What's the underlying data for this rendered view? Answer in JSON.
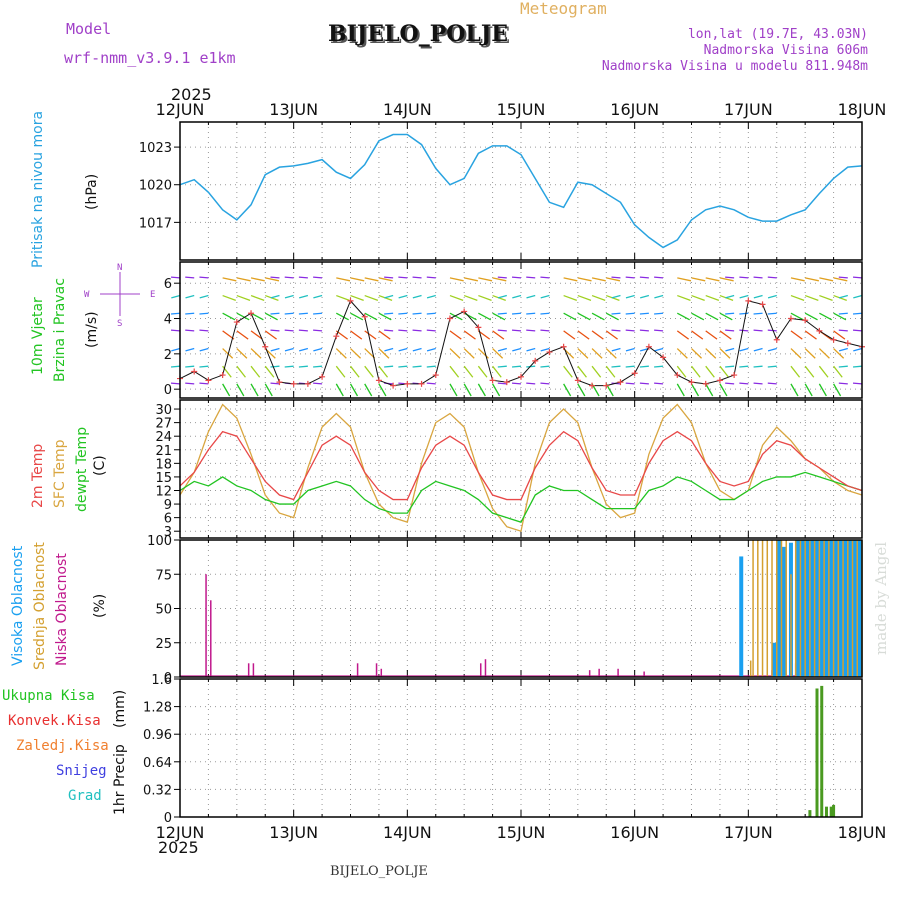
{
  "header": {
    "model_label": "Model",
    "model_name": "wrf-nmm_v3.9.1  e1km",
    "station": "BIJELO_POLJE",
    "product": "Meteogram",
    "lonlat": "lon,lat (19.7E, 43.03N)",
    "elevation": "Nadmorska Visina 606m",
    "model_elevation": "Nadmorska Visina u modelu 811.948m",
    "year": "2025",
    "footer_station": "BIJELO_POLJE",
    "credit": "made by Angel"
  },
  "colors": {
    "pressure": "#29a3e0",
    "temp2m": "#e84848",
    "sfc_temp": "#d9a640",
    "dewpt": "#22c422",
    "high_cloud": "#1aa0f0",
    "mid_cloud": "#d4a030",
    "low_cloud": "#c0188c",
    "total_precip": "#4a9a20",
    "conv_precip": "#e83030",
    "frozen_precip": "#f08030",
    "snow": "#4040e0",
    "hail": "#20c0c0",
    "header_purple": "#a040c8",
    "title_orange": "#e0b060"
  },
  "chart_data": [
    {
      "type": "line",
      "panel": "pressure",
      "ylabel": "Pritisak na nivou mora",
      "unit": "(hPa)",
      "x_ticks": [
        "12JUN",
        "13JUN",
        "14JUN",
        "15JUN",
        "16JUN",
        "17JUN",
        "18JUN"
      ],
      "x_unit": "hours from 12JUN 00",
      "y_ticks": [
        1017,
        1020,
        1023
      ],
      "ylim": [
        1014.0,
        1025.0
      ],
      "grid": true,
      "series": [
        {
          "x": [
            0,
            3,
            6,
            9,
            12,
            15,
            18,
            21,
            24,
            27,
            30,
            33,
            36,
            39,
            42,
            45,
            48,
            51,
            54,
            57,
            60,
            63,
            66,
            69,
            72,
            75,
            78,
            81,
            84,
            87,
            90,
            93,
            96,
            99,
            102,
            105,
            108,
            111,
            114,
            117,
            120,
            123,
            126,
            129,
            132,
            135,
            138,
            141,
            144
          ],
          "values": [
            1020.0,
            1020.4,
            1019.4,
            1018.0,
            1017.2,
            1018.4,
            1020.8,
            1021.4,
            1021.5,
            1021.7,
            1022.0,
            1021.0,
            1020.5,
            1021.6,
            1023.5,
            1024.0,
            1024.0,
            1023.2,
            1021.3,
            1020.0,
            1020.5,
            1022.5,
            1023.1,
            1023.1,
            1022.4,
            1020.5,
            1018.6,
            1018.2,
            1020.2,
            1020.0,
            1019.3,
            1018.6,
            1016.8,
            1015.8,
            1015.0,
            1015.6,
            1017.2,
            1018.0,
            1018.3,
            1018.0,
            1017.4,
            1017.1,
            1017.1,
            1017.6,
            1018.0,
            1019.3,
            1020.5,
            1021.4,
            1021.5
          ]
        }
      ]
    },
    {
      "type": "line",
      "panel": "wind",
      "ylabel": "10m Vjetar",
      "ylabel2": "Brzina i Pravac",
      "unit": "(m/s)",
      "compass": {
        "north": "N",
        "south": "S",
        "west": "W",
        "east": "E"
      },
      "y_ticks": [
        0,
        2,
        4,
        6
      ],
      "ylim": [
        -0.5,
        7.2
      ],
      "grid": true,
      "series": [
        {
          "name": "speed",
          "x": [
            0,
            3,
            6,
            9,
            12,
            15,
            18,
            21,
            24,
            27,
            30,
            33,
            36,
            39,
            42,
            45,
            48,
            51,
            54,
            57,
            60,
            63,
            66,
            69,
            72,
            75,
            78,
            81,
            84,
            87,
            90,
            93,
            96,
            99,
            102,
            105,
            108,
            111,
            114,
            117,
            120,
            123,
            126,
            129,
            132,
            135,
            138,
            141,
            144
          ],
          "values": [
            0.6,
            1.0,
            0.5,
            0.8,
            3.8,
            4.3,
            2.4,
            0.4,
            0.3,
            0.3,
            0.7,
            3.0,
            5.0,
            4.1,
            0.5,
            0.2,
            0.3,
            0.3,
            0.8,
            4.0,
            4.4,
            3.5,
            0.5,
            0.4,
            0.7,
            1.6,
            2.1,
            2.4,
            0.5,
            0.2,
            0.2,
            0.4,
            0.9,
            2.4,
            1.8,
            0.8,
            0.4,
            0.3,
            0.5,
            0.8,
            5.0,
            4.8,
            2.8,
            4.0,
            3.9,
            3.3,
            2.8,
            2.6,
            2.4
          ]
        }
      ]
    },
    {
      "type": "line",
      "panel": "temperature",
      "ylabel": "2m Temp",
      "ylabel2": "SFC Temp",
      "ylabel3": "dewpt Temp",
      "unit": "(C)",
      "y_ticks": [
        3,
        6,
        9,
        12,
        15,
        18,
        21,
        24,
        27,
        30
      ],
      "ylim": [
        1.5,
        32.0
      ],
      "grid": true,
      "series": [
        {
          "name": "2m Temp",
          "x": [
            0,
            3,
            6,
            9,
            12,
            15,
            18,
            21,
            24,
            27,
            30,
            33,
            36,
            39,
            42,
            45,
            48,
            51,
            54,
            57,
            60,
            63,
            66,
            69,
            72,
            75,
            78,
            81,
            84,
            87,
            90,
            93,
            96,
            99,
            102,
            105,
            108,
            111,
            114,
            117,
            120,
            123,
            126,
            129,
            132,
            135,
            138,
            141,
            144
          ],
          "values": [
            13,
            16,
            21,
            25,
            24,
            19,
            14,
            11,
            10,
            16,
            22,
            24,
            22,
            16,
            12,
            10,
            10,
            17,
            22,
            24,
            22,
            16,
            11,
            10,
            10,
            17,
            22,
            25,
            23,
            17,
            12,
            11,
            11,
            18,
            23,
            25,
            23,
            18,
            14,
            13,
            14,
            20,
            23,
            22,
            19,
            17,
            15,
            13,
            12
          ]
        },
        {
          "name": "SFC Temp",
          "x": [
            0,
            3,
            6,
            9,
            12,
            15,
            18,
            21,
            24,
            27,
            30,
            33,
            36,
            39,
            42,
            45,
            48,
            51,
            54,
            57,
            60,
            63,
            66,
            69,
            72,
            75,
            78,
            81,
            84,
            87,
            90,
            93,
            96,
            99,
            102,
            105,
            108,
            111,
            114,
            117,
            120,
            123,
            126,
            129,
            132,
            135,
            138,
            141,
            144
          ],
          "values": [
            11,
            16,
            25,
            31,
            28,
            20,
            11,
            7,
            6,
            17,
            26,
            29,
            26,
            16,
            9,
            6,
            5,
            18,
            27,
            29,
            26,
            16,
            8,
            4,
            3,
            18,
            27,
            30,
            27,
            17,
            9,
            6,
            7,
            20,
            28,
            31,
            27,
            18,
            12,
            10,
            12,
            22,
            26,
            23,
            19,
            17,
            14,
            12,
            11
          ]
        },
        {
          "name": "dewpt Temp",
          "x": [
            0,
            3,
            6,
            9,
            12,
            15,
            18,
            21,
            24,
            27,
            30,
            33,
            36,
            39,
            42,
            45,
            48,
            51,
            54,
            57,
            60,
            63,
            66,
            69,
            72,
            75,
            78,
            81,
            84,
            87,
            90,
            93,
            96,
            99,
            102,
            105,
            108,
            111,
            114,
            117,
            120,
            123,
            126,
            129,
            132,
            135,
            138,
            141,
            144
          ],
          "values": [
            12,
            14,
            13,
            15,
            13,
            12,
            10,
            9,
            9,
            12,
            13,
            14,
            13,
            10,
            8,
            7,
            7,
            12,
            14,
            13,
            12,
            10,
            7,
            6,
            5,
            11,
            13,
            12,
            12,
            10,
            8,
            8,
            8,
            12,
            13,
            15,
            14,
            12,
            10,
            10,
            12,
            14,
            15,
            15,
            16,
            15,
            14,
            13,
            12
          ]
        }
      ]
    },
    {
      "type": "bar",
      "panel": "cloud",
      "ylabel": "Visoka Oblacnost",
      "ylabel2": "Srednja Oblacnost",
      "ylabel3": "Niska Oblacnost",
      "unit": "(%)",
      "y_ticks": [
        0,
        25,
        50,
        75,
        100
      ],
      "ylim": [
        0,
        100
      ],
      "grid": true,
      "series": [
        {
          "name": "Niska Oblacnost",
          "x": [
            5.5,
            6.5,
            14.5,
            15.5,
            37.5,
            41.5,
            42.5,
            63.5,
            64.5,
            86.5,
            88.5,
            92.5,
            98,
            125,
            127.5,
            130
          ],
          "values": [
            75,
            56,
            10,
            10,
            10,
            10,
            6,
            10,
            13,
            5,
            6,
            6,
            4,
            5,
            5,
            10
          ]
        },
        {
          "name": "Visoka Oblacnost",
          "x": [
            118.5,
            125.5,
            126.5,
            127.5,
            129,
            130.5,
            131.5,
            132.5,
            133.5,
            134.5,
            135.5,
            136.5,
            137.5,
            138.5,
            139.5,
            140.5,
            141.5,
            142.5,
            143.5
          ],
          "values": [
            88,
            25,
            100,
            95,
            98,
            100,
            100,
            100,
            100,
            100,
            100,
            100,
            100,
            100,
            100,
            100,
            100,
            100,
            100
          ]
        },
        {
          "name": "Srednja Oblacnost",
          "x": [
            120.5,
            121,
            122,
            123,
            124,
            125,
            126,
            127,
            128,
            129,
            130,
            131,
            132,
            133,
            134,
            135,
            136,
            137,
            138,
            139,
            140,
            141,
            142,
            143,
            144
          ],
          "values": [
            12,
            100,
            100,
            100,
            100,
            100,
            100,
            100,
            100,
            75,
            100,
            100,
            100,
            100,
            100,
            100,
            100,
            100,
            100,
            100,
            100,
            100,
            100,
            100,
            100
          ]
        }
      ]
    },
    {
      "type": "bar",
      "panel": "precip",
      "ylabel": "1hr Precip",
      "unit": "(mm)",
      "y_ticks": [
        "0",
        "0.32",
        "0.64",
        "0.96",
        "1.28",
        "1.6"
      ],
      "ylim": [
        0,
        1.6
      ],
      "grid": true,
      "legend": [
        "Ukupna Kisa",
        "Konvek.Kisa",
        "Zaledj.Kisa",
        "Snijeg",
        "Grad"
      ],
      "series": [
        {
          "name": "Ukupna Kisa",
          "x": [
            133,
            134.5,
            135.5,
            136.5,
            137.5,
            138
          ],
          "values": [
            0.08,
            1.49,
            1.52,
            0.12,
            0.12,
            0.14
          ]
        }
      ]
    }
  ]
}
